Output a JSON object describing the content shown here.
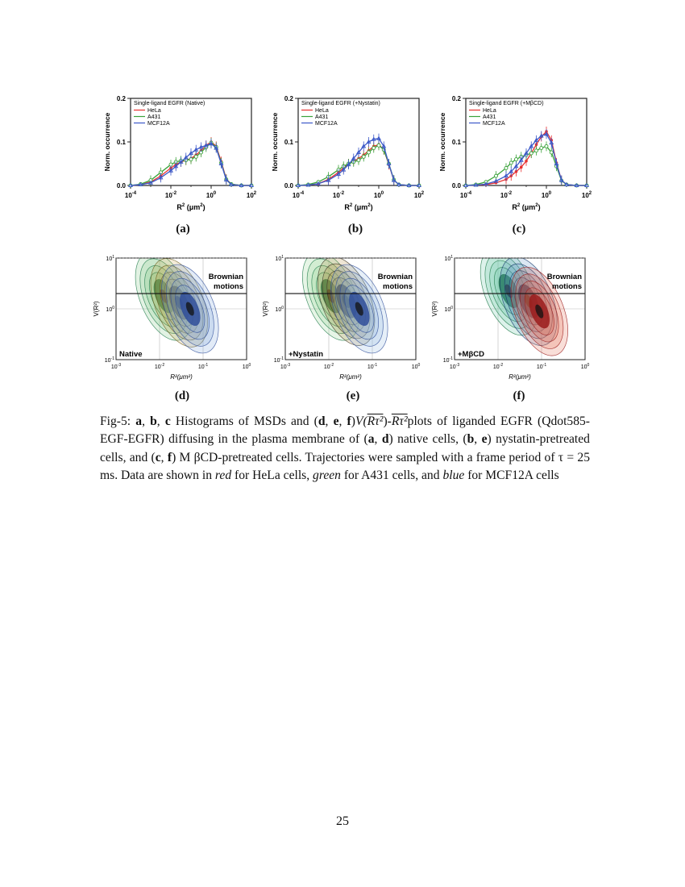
{
  "colors": {
    "hela": "#e8302f",
    "a431": "#3aa23a",
    "mcf12a": "#3b58c8"
  },
  "histogram_panels": [
    {
      "label": "(a)",
      "legend_title": "Single-ligand EGFR (Native)"
    },
    {
      "label": "(b)",
      "legend_title": "Single-ligand EGFR (+Nystatin)"
    },
    {
      "label": "(c)",
      "legend_title": "Single-ligand EGFR (+MβCD)"
    }
  ],
  "legend": [
    "HeLa",
    "A431",
    "MCF12A"
  ],
  "hist_axes": {
    "ylabel": "Norm. occurrence",
    "xlabel_base": "R",
    "xlabel_exp": "2",
    "xlabel_unit_open": " (μm",
    "xlabel_unit_exp": "2",
    "xlabel_unit_close": ")",
    "yticks": [
      "0.0",
      "0.1",
      "0.2"
    ],
    "xtick_base": "10",
    "xtick_exps": [
      "-4",
      "-2",
      "0",
      "2"
    ]
  },
  "contour_panels": [
    {
      "label": "(d)",
      "condition": "Native"
    },
    {
      "label": "(e)",
      "condition": "+Nystatin"
    },
    {
      "label": "(f)",
      "condition": "+MβCD"
    }
  ],
  "contour_axes": {
    "annotation_line1": "Brownian",
    "annotation_line2": "motions",
    "ylabel": "V(R²)",
    "xlabel": "R²(μm²)",
    "xtick_base": "10",
    "xtick_exps": [
      "-3",
      "-2",
      "-1",
      "0"
    ],
    "ytick_exps": [
      "1",
      "0",
      "-1"
    ]
  },
  "caption": {
    "prefix": "Fig-5:  ",
    "a": "a",
    "b": "b",
    "c": "c",
    "t1": " Histograms of MSDs and (",
    "d": "d",
    "e": "e",
    "f": "f",
    "t2": ")",
    "formula_v": "V(",
    "formula_r1": "Rτ²",
    "formula_mid": ")-",
    "formula_r2": "Rτ²",
    "t3": "plots of liganded EGFR (Qdot585-EGF-EGFR) diffusing in the plasma membrane of (",
    "t4": ") native cells, (",
    "t5": ") nystatin-pretreated cells, and (",
    "t6": ") M βCD-pretreated cells. Trajectories were sampled with a frame period of τ = 25 ms.  Data are shown in ",
    "red": "red",
    "t7": " for HeLa cells, ",
    "green": "green",
    "t8": " for A431 cells, and ",
    "blue": "blue",
    "t9": " for MCF12A cells"
  },
  "page_number": "25",
  "chart_data": [
    {
      "type": "line",
      "panel": "(a)",
      "title": "Single-ligand EGFR (Native)",
      "xlabel": "R² (μm²)",
      "ylabel": "Norm. occurrence",
      "xscale": "log",
      "xlim": [
        0.0001,
        100
      ],
      "ylim": [
        0,
        0.2
      ],
      "log10_x": [
        -4,
        -3.5,
        -3,
        -2.5,
        -2,
        -1.75,
        -1.5,
        -1.25,
        -1,
        -0.75,
        -0.5,
        -0.25,
        0,
        0.25,
        0.5,
        0.75,
        1,
        1.5,
        2
      ],
      "series": [
        {
          "name": "HeLa",
          "values": [
            0,
            0.002,
            0.008,
            0.022,
            0.04,
            0.048,
            0.054,
            0.058,
            0.062,
            0.07,
            0.08,
            0.092,
            0.1,
            0.09,
            0.055,
            0.015,
            0.003,
            0,
            0
          ]
        },
        {
          "name": "A431",
          "values": [
            0,
            0.003,
            0.012,
            0.03,
            0.048,
            0.054,
            0.057,
            0.058,
            0.06,
            0.066,
            0.076,
            0.088,
            0.098,
            0.088,
            0.052,
            0.014,
            0.003,
            0,
            0
          ]
        },
        {
          "name": "MCF12A",
          "values": [
            0,
            0.002,
            0.006,
            0.018,
            0.034,
            0.044,
            0.054,
            0.064,
            0.074,
            0.082,
            0.088,
            0.092,
            0.096,
            0.086,
            0.05,
            0.013,
            0.002,
            0,
            0
          ]
        }
      ]
    },
    {
      "type": "line",
      "panel": "(b)",
      "title": "Single-ligand EGFR (+Nystatin)",
      "xlabel": "R² (μm²)",
      "ylabel": "Norm. occurrence",
      "xscale": "log",
      "xlim": [
        0.0001,
        100
      ],
      "ylim": [
        0,
        0.2
      ],
      "log10_x": [
        -4,
        -3.5,
        -3,
        -2.5,
        -2,
        -1.75,
        -1.5,
        -1.25,
        -1,
        -0.75,
        -0.5,
        -0.25,
        0,
        0.25,
        0.5,
        0.75,
        1,
        1.5,
        2
      ],
      "series": [
        {
          "name": "HeLa",
          "values": [
            0,
            0.001,
            0.004,
            0.014,
            0.03,
            0.04,
            0.05,
            0.056,
            0.062,
            0.07,
            0.08,
            0.09,
            0.094,
            0.082,
            0.048,
            0.012,
            0.002,
            0,
            0
          ]
        },
        {
          "name": "A431",
          "values": [
            0,
            0.002,
            0.008,
            0.02,
            0.036,
            0.044,
            0.05,
            0.054,
            0.058,
            0.066,
            0.076,
            0.086,
            0.092,
            0.082,
            0.05,
            0.013,
            0.002,
            0,
            0
          ]
        },
        {
          "name": "MCF12A",
          "values": [
            0,
            0.001,
            0.004,
            0.012,
            0.026,
            0.036,
            0.048,
            0.062,
            0.076,
            0.09,
            0.1,
            0.106,
            0.108,
            0.09,
            0.05,
            0.012,
            0.002,
            0,
            0
          ]
        }
      ]
    },
    {
      "type": "line",
      "panel": "(c)",
      "title": "Single-ligand EGFR (+MβCD)",
      "xlabel": "R² (μm²)",
      "ylabel": "Norm. occurrence",
      "xscale": "log",
      "xlim": [
        0.0001,
        100
      ],
      "ylim": [
        0,
        0.2
      ],
      "log10_x": [
        -4,
        -3.5,
        -3,
        -2.5,
        -2,
        -1.75,
        -1.5,
        -1.25,
        -1,
        -0.75,
        -0.5,
        -0.25,
        0,
        0.25,
        0.5,
        0.75,
        1,
        1.5,
        2
      ],
      "series": [
        {
          "name": "HeLa",
          "values": [
            0,
            0.001,
            0.002,
            0.006,
            0.014,
            0.022,
            0.032,
            0.042,
            0.056,
            0.074,
            0.094,
            0.112,
            0.124,
            0.104,
            0.052,
            0.012,
            0.002,
            0,
            0
          ]
        },
        {
          "name": "A431",
          "values": [
            0,
            0.002,
            0.008,
            0.022,
            0.04,
            0.052,
            0.06,
            0.066,
            0.07,
            0.074,
            0.08,
            0.086,
            0.09,
            0.076,
            0.044,
            0.011,
            0.002,
            0,
            0
          ]
        },
        {
          "name": "MCF12A",
          "values": [
            0,
            0.001,
            0.003,
            0.01,
            0.022,
            0.032,
            0.044,
            0.058,
            0.074,
            0.09,
            0.104,
            0.114,
            0.118,
            0.098,
            0.05,
            0.012,
            0.002,
            0,
            0
          ]
        }
      ]
    }
  ]
}
